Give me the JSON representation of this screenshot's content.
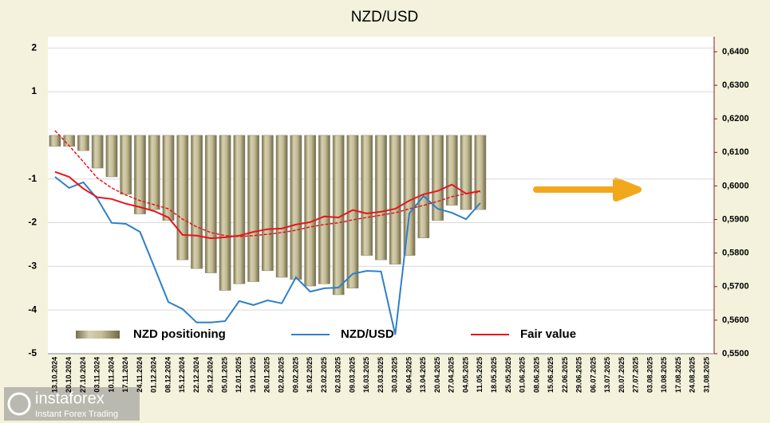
{
  "chart_data": {
    "type": "bar-line",
    "title": "NZD/USD",
    "watermark": {
      "brand": "instaforex",
      "tagline": "Instant Forex Trading"
    },
    "categories": [
      "13.10.2024",
      "20.10.2024",
      "27.10.2024",
      "03.11.2024",
      "10.11.2024",
      "17.11.2024",
      "24.11.2024",
      "01.12.2024",
      "08.12.2024",
      "15.12.2024",
      "22.12.2024",
      "29.12.2024",
      "05.01.2025",
      "12.01.2025",
      "19.01.2025",
      "26.01.2025",
      "02.02.2025",
      "09.02.2025",
      "16.02.2025",
      "23.02.2025",
      "02.03.2025",
      "09.03.2025",
      "16.03.2025",
      "23.03.2025",
      "30.03.2025",
      "06.04.2025",
      "13.04.2025",
      "20.04.2025",
      "27.04.2025",
      "04.05.2025",
      "11.05.2025",
      "18.05.2025",
      "25.05.2025",
      "01.06.2025",
      "08.06.2025",
      "15.06.2025",
      "22.06.2025",
      "29.06.2025",
      "06.07.2025",
      "13.07.2025",
      "20.07.2025",
      "27.07.2025",
      "03.08.2025",
      "10.08.2025",
      "17.08.2025",
      "24.08.2025",
      "31.08.2025"
    ],
    "series": [
      {
        "name": "NZD positioning",
        "type": "bar",
        "color": "#b3ab85",
        "values": [
          -0.25,
          -0.25,
          -0.35,
          -0.75,
          -0.95,
          -1.35,
          -1.8,
          -1.7,
          -1.95,
          -2.85,
          -3.05,
          -3.15,
          -3.55,
          -3.4,
          -3.35,
          -3.1,
          -3.25,
          -3.3,
          -3.45,
          -3.4,
          -3.65,
          -3.5,
          -2.75,
          -2.85,
          -2.95,
          -2.75,
          -2.35,
          -1.95,
          -1.6,
          -1.7,
          -1.7,
          null,
          null,
          null,
          null,
          null,
          null,
          null,
          null,
          null,
          null,
          null,
          null,
          null,
          null,
          null,
          null
        ]
      },
      {
        "name": "NZD/USD",
        "type": "line",
        "axis": "y2",
        "color": "#2e7fc9",
        "values": [
          0.6027,
          0.5994,
          0.6011,
          0.5961,
          0.589,
          0.5887,
          0.5863,
          0.5759,
          0.5654,
          0.5633,
          0.5593,
          0.5593,
          0.5597,
          0.5657,
          0.5645,
          0.5659,
          0.565,
          0.5728,
          0.5685,
          0.5695,
          0.5697,
          0.5738,
          0.5747,
          0.5745,
          0.5557,
          0.5918,
          0.597,
          0.5932,
          0.592,
          0.5901,
          0.5949,
          null,
          null,
          null,
          null,
          null,
          null,
          null,
          null,
          null,
          null,
          null,
          null,
          null,
          null,
          null,
          null
        ]
      },
      {
        "name": "Fair value",
        "type": "line",
        "axis": "y2",
        "color": "#e8141c",
        "values": [
          0.6042,
          0.6027,
          0.5992,
          0.5966,
          0.5961,
          0.5947,
          0.5937,
          0.5925,
          0.5906,
          0.5854,
          0.5852,
          0.5844,
          0.5847,
          0.5852,
          0.5863,
          0.5871,
          0.5873,
          0.5885,
          0.5892,
          0.5909,
          0.5906,
          0.5928,
          0.5918,
          0.5923,
          0.5932,
          0.5956,
          0.5975,
          0.5985,
          0.6004,
          0.5977,
          0.5985,
          null,
          null,
          null,
          null,
          null,
          null,
          null,
          null,
          null,
          null,
          null,
          null,
          null,
          null,
          null,
          null
        ]
      },
      {
        "type": "line",
        "axis": "y2",
        "color": "#e8141c",
        "dashed": true,
        "values": [
          0.6165,
          0.612,
          0.6072,
          0.6023,
          0.5994,
          0.5973,
          0.5956,
          0.5944,
          0.5932,
          0.5901,
          0.5878,
          0.5861,
          0.5852,
          0.5849,
          0.5852,
          0.5856,
          0.5861,
          0.5868,
          0.5878,
          0.5885,
          0.589,
          0.5899,
          0.5906,
          0.5913,
          0.592,
          0.5932,
          0.5942,
          0.5954,
          0.5968,
          0.5977,
          0.5982,
          null,
          null,
          null,
          null,
          null,
          null,
          null,
          null,
          null,
          null,
          null,
          null,
          null,
          null,
          null,
          null
        ]
      }
    ],
    "ylim": [
      -5,
      2.26
    ],
    "yticks": [
      2,
      1,
      -1,
      -2,
      -3,
      -4,
      -5
    ],
    "y2lim": [
      0.55,
      0.6445
    ],
    "y2ticks": [
      {
        "value": 0.55,
        "label": "0,5500"
      },
      {
        "value": 0.56,
        "label": "0,5600"
      },
      {
        "value": 0.57,
        "label": "0,5700"
      },
      {
        "value": 0.58,
        "label": "0,5800"
      },
      {
        "value": 0.59,
        "label": "0,5900"
      },
      {
        "value": 0.6,
        "label": "0,6000"
      },
      {
        "value": 0.61,
        "label": "0,6100"
      },
      {
        "value": 0.62,
        "label": "0,6200"
      },
      {
        "value": 0.63,
        "label": "0,6300"
      },
      {
        "value": 0.64,
        "label": "0,6400"
      }
    ],
    "grid": true,
    "legend": "bottom"
  }
}
